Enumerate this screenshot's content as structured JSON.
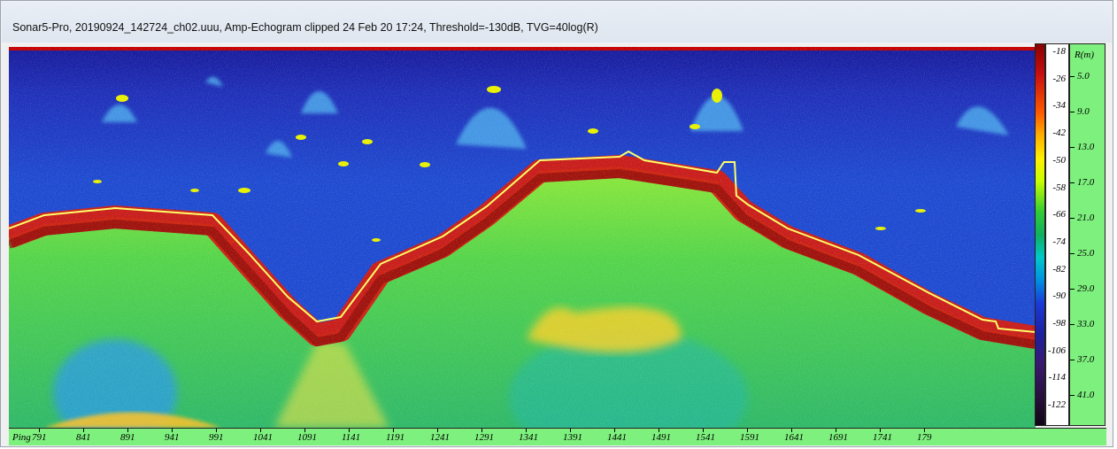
{
  "window": {
    "title": "Sonar5-Pro, 20190924_142724_ch02.uuu, Amp-Echogram clipped 24 Feb 20 17:24, Threshold=-130dB, TVG=40log(R)"
  },
  "colorbar": {
    "labels": [
      "-18",
      "-26",
      "-34",
      "-42",
      "-50",
      "-58",
      "-66",
      "-74",
      "-82",
      "-90",
      "-98",
      "-106",
      "-114",
      "-122"
    ]
  },
  "range_axis": {
    "header": "R(m)",
    "labels": [
      "5.0",
      "9.0",
      "13.0",
      "17.0",
      "21.0",
      "25.0",
      "29.0",
      "33.0",
      "37.0",
      "41.0"
    ]
  },
  "ping_axis": {
    "header": "Ping",
    "labels": [
      "791",
      "841",
      "891",
      "941",
      "991",
      "1041",
      "1091",
      "1141",
      "1191",
      "1241",
      "1291",
      "1341",
      "1391",
      "1441",
      "1491",
      "1541",
      "1591",
      "1641",
      "1691",
      "1741",
      "179"
    ]
  },
  "colors": {
    "water": "#1e3fc4",
    "bottom_echo": "#d21a10",
    "sediment": "#4fd24a",
    "bottom_line": "#ffff66",
    "axis_bg": "#7df07d"
  }
}
